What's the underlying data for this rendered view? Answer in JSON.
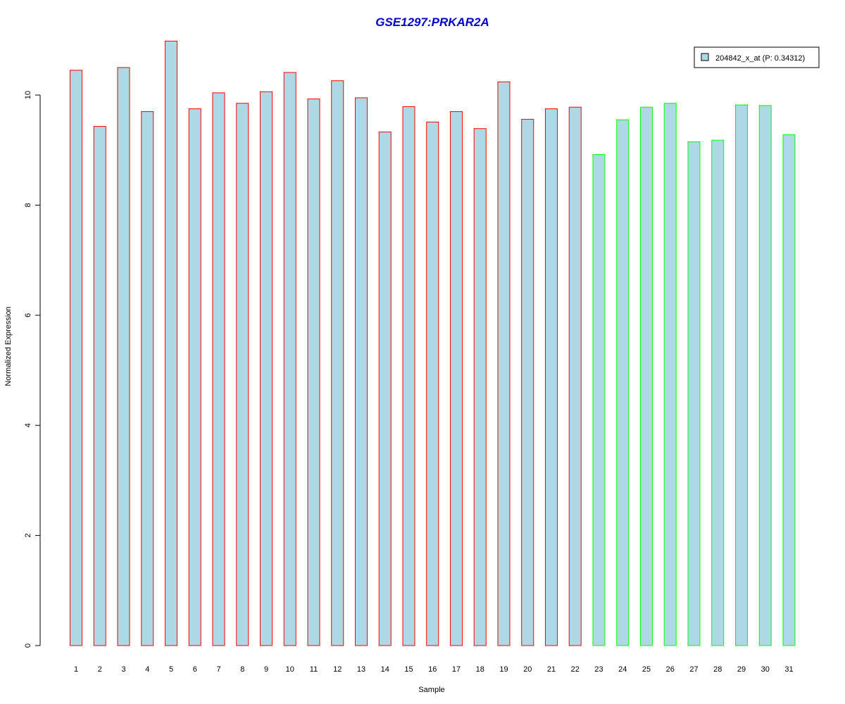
{
  "chart_data": {
    "type": "bar",
    "title": "GSE1297:PRKAR2A",
    "xlabel": "Sample",
    "ylabel": "Normalized Expression",
    "ylim": [
      0,
      11
    ],
    "yticks": [
      0,
      2,
      4,
      6,
      8,
      10
    ],
    "categories": [
      "1",
      "2",
      "3",
      "4",
      "5",
      "6",
      "7",
      "8",
      "9",
      "10",
      "11",
      "12",
      "13",
      "14",
      "15",
      "16",
      "17",
      "18",
      "19",
      "20",
      "21",
      "22",
      "23",
      "24",
      "25",
      "26",
      "27",
      "28",
      "29",
      "30",
      "31"
    ],
    "series": [
      {
        "name": "204842_x_at (P: 0.34312)",
        "values": [
          10.45,
          9.43,
          10.5,
          9.7,
          10.98,
          9.75,
          10.04,
          9.85,
          10.06,
          10.41,
          9.93,
          10.26,
          9.95,
          9.33,
          9.79,
          9.51,
          9.7,
          9.39,
          10.24,
          9.56,
          9.75,
          9.78,
          8.92,
          9.55,
          9.78,
          9.85,
          9.15,
          9.18,
          9.82,
          9.81,
          9.28
        ]
      }
    ],
    "groups": [
      "1",
      "1",
      "1",
      "1",
      "1",
      "1",
      "1",
      "1",
      "1",
      "1",
      "1",
      "1",
      "1",
      "1",
      "1",
      "1",
      "1",
      "1",
      "1",
      "1",
      "1",
      "1",
      "2",
      "2",
      "2",
      "2",
      "2",
      "2",
      "2",
      "2",
      "2"
    ],
    "legend_position": "top-right",
    "grid": false
  },
  "colors": {
    "title": "#0000cc",
    "bar_fill": "#add8e6",
    "group_1_border": "#ff0000",
    "group_2_border": "#00ff00",
    "axis": "#000000"
  }
}
